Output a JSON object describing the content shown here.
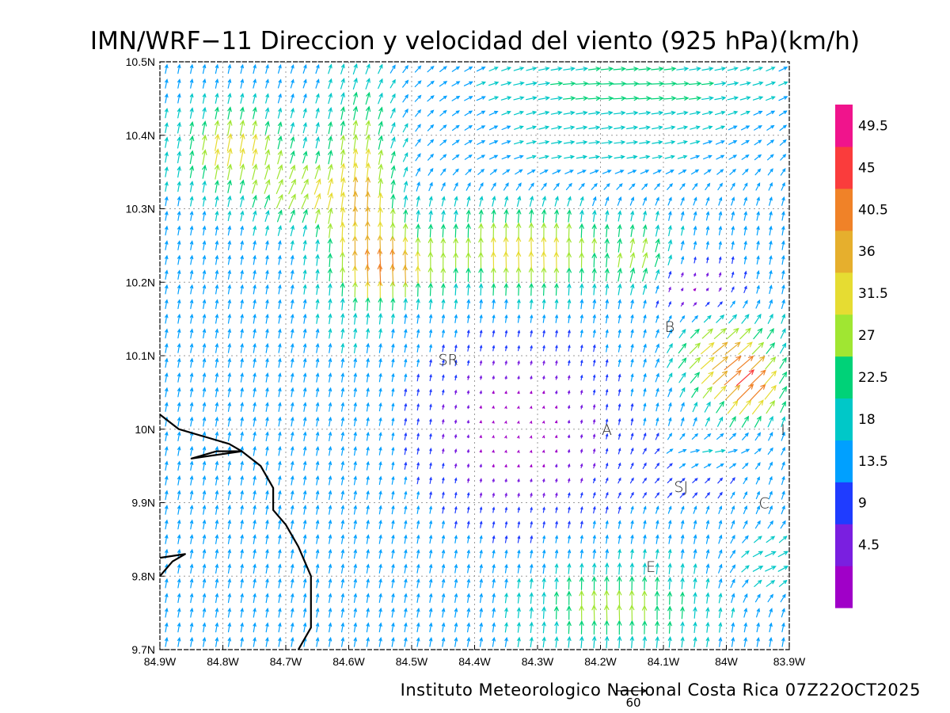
{
  "chart_data": {
    "type": "vector-field",
    "title": "IMN/WRF−11 Direccion y velocidad del viento (925 hPa)(km/h)",
    "credit": "Instituto Meteorologico Nacional Costa Rica 07Z22OCT2025",
    "reference_vector": {
      "label": "60",
      "speed": 60
    },
    "x_axis": {
      "range": [
        -84.9,
        -83.9
      ],
      "ticks": [
        {
          "value": -84.9,
          "label": "84.9W"
        },
        {
          "value": -84.8,
          "label": "84.8W"
        },
        {
          "value": -84.7,
          "label": "84.7W"
        },
        {
          "value": -84.6,
          "label": "84.6W"
        },
        {
          "value": -84.5,
          "label": "84.5W"
        },
        {
          "value": -84.4,
          "label": "84.4W"
        },
        {
          "value": -84.3,
          "label": "84.3W"
        },
        {
          "value": -84.2,
          "label": "84.2W"
        },
        {
          "value": -84.1,
          "label": "84.1W"
        },
        {
          "value": -84.0,
          "label": "84W"
        },
        {
          "value": -83.9,
          "label": "83.9W"
        }
      ]
    },
    "y_axis": {
      "range": [
        9.7,
        10.5
      ],
      "ticks": [
        {
          "value": 9.7,
          "label": "9.7N"
        },
        {
          "value": 9.8,
          "label": "9.8N"
        },
        {
          "value": 9.9,
          "label": "9.9N"
        },
        {
          "value": 10.0,
          "label": "10N"
        },
        {
          "value": 10.1,
          "label": "10.1N"
        },
        {
          "value": 10.2,
          "label": "10.2N"
        },
        {
          "value": 10.3,
          "label": "10.3N"
        },
        {
          "value": 10.4,
          "label": "10.4N"
        },
        {
          "value": 10.5,
          "label": "10.5N"
        }
      ]
    },
    "grid": true,
    "colorbar": {
      "position": "right",
      "colors": [
        "#a000c8",
        "#7a1fe0",
        "#1f3cff",
        "#00a0ff",
        "#00c8c8",
        "#00d278",
        "#a0e632",
        "#e6dc32",
        "#e6af2d",
        "#f08228",
        "#fa3c3c",
        "#f0148c"
      ],
      "levels": [
        "4.5",
        "9",
        "13.5",
        "18",
        "22.5",
        "27",
        "31.5",
        "36",
        "40.5",
        "45",
        "49.5"
      ],
      "bounds": [
        0,
        4.5,
        9,
        13.5,
        18,
        22.5,
        27,
        31.5,
        36,
        40.5,
        45,
        49.5,
        54
      ]
    },
    "place_labels": [
      {
        "text": "SR",
        "lon": -84.442,
        "lat": 10.095
      },
      {
        "text": "A",
        "lon": -84.19,
        "lat": 10.0
      },
      {
        "text": "B",
        "lon": -84.09,
        "lat": 10.14
      },
      {
        "text": "SJ",
        "lon": -84.072,
        "lat": 9.922
      },
      {
        "text": "C",
        "lon": -83.94,
        "lat": 9.9
      },
      {
        "text": "E",
        "lon": -84.12,
        "lat": 9.813
      },
      {
        "text": "I",
        "lon": -83.91,
        "lat": 10.0
      }
    ],
    "coastlines": [
      [
        [
          -84.9,
          10.02
        ],
        [
          -84.87,
          10.0
        ],
        [
          -84.83,
          9.99
        ],
        [
          -84.79,
          9.98
        ],
        [
          -84.77,
          9.97
        ],
        [
          -84.85,
          9.96
        ],
        [
          -84.81,
          9.97
        ],
        [
          -84.77,
          9.97
        ],
        [
          -84.74,
          9.95
        ],
        [
          -84.72,
          9.92
        ],
        [
          -84.72,
          9.89
        ],
        [
          -84.7,
          9.87
        ],
        [
          -84.68,
          9.84
        ],
        [
          -84.66,
          9.8
        ],
        [
          -84.66,
          9.75
        ],
        [
          -84.66,
          9.73
        ],
        [
          -84.68,
          9.7
        ]
      ],
      [
        [
          -84.9,
          9.8
        ],
        [
          -84.88,
          9.82
        ],
        [
          -84.86,
          9.83
        ],
        [
          -84.9,
          9.825
        ]
      ]
    ],
    "wind_grid": {
      "lon_min": -84.9,
      "lon_max": -83.9,
      "nx": 50,
      "lat_min": 9.7,
      "lat_max": 10.5,
      "ny": 40,
      "units": "km/h"
    }
  }
}
